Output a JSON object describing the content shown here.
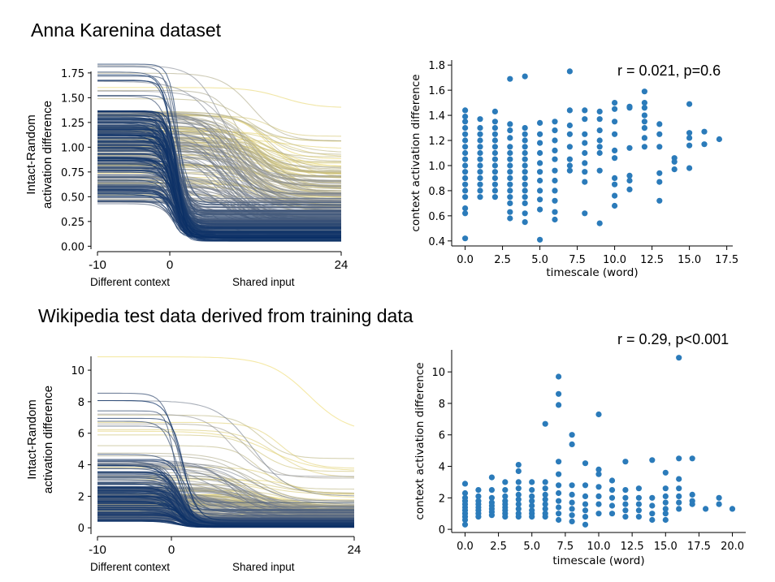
{
  "titles": {
    "anna": "Anna Karenina dataset",
    "wiki": "Wikipedia test data derived from training data"
  },
  "chart_data": [
    {
      "id": "anna-curves",
      "type": "line",
      "ylabel_lines": [
        "Intact-Random",
        "activation difference"
      ],
      "xticks": [
        "-10",
        "0",
        "24"
      ],
      "yticks": [
        "0.00",
        "0.25",
        "0.50",
        "0.75",
        "1.00",
        "1.25",
        "1.50",
        "1.75"
      ],
      "below_labels": [
        "Different context",
        "Shared input"
      ],
      "x_range": [
        -10,
        24
      ],
      "ylim": [
        -0.03,
        1.88
      ],
      "colors": {
        "short_timescale": "#0a2f66",
        "mid_timescale": "#8c8f96",
        "long_timescale": "#f0dc6a"
      },
      "series_count": 350,
      "grid": false
    },
    {
      "id": "anna-scatter",
      "type": "scatter",
      "annotation": "r = 0.021, p=0.6",
      "xlabel": "timescale (word)",
      "ylabel": "context activation difference",
      "xticks": [
        "0.0",
        "2.5",
        "5.0",
        "7.5",
        "10.0",
        "12.5",
        "15.0",
        "17.5"
      ],
      "yticks": [
        "0.4",
        "0.6",
        "0.8",
        "1.0",
        "1.2",
        "1.4",
        "1.6",
        "1.8"
      ],
      "xlim": [
        -0.9,
        17.9
      ],
      "ylim": [
        0.36,
        1.84
      ],
      "marker_color": "#2b7bba",
      "grid": false,
      "points": [
        [
          0,
          1.44
        ],
        [
          0,
          1.39
        ],
        [
          0,
          1.35
        ],
        [
          0,
          1.3
        ],
        [
          0,
          1.25
        ],
        [
          0,
          1.2
        ],
        [
          0,
          1.15
        ],
        [
          0,
          1.1
        ],
        [
          0,
          1.05
        ],
        [
          0,
          1.0
        ],
        [
          0,
          0.95
        ],
        [
          0,
          0.9
        ],
        [
          0,
          0.85
        ],
        [
          0,
          0.8
        ],
        [
          0,
          0.75
        ],
        [
          0,
          0.66
        ],
        [
          0,
          0.62
        ],
        [
          0,
          0.42
        ],
        [
          1,
          1.37
        ],
        [
          1,
          1.3
        ],
        [
          1,
          1.25
        ],
        [
          1,
          1.2
        ],
        [
          1,
          1.15
        ],
        [
          1,
          1.1
        ],
        [
          1,
          1.05
        ],
        [
          1,
          1.0
        ],
        [
          1,
          0.95
        ],
        [
          1,
          0.9
        ],
        [
          1,
          0.85
        ],
        [
          1,
          0.8
        ],
        [
          1,
          0.75
        ],
        [
          2,
          1.43
        ],
        [
          2,
          1.35
        ],
        [
          2,
          1.3
        ],
        [
          2,
          1.25
        ],
        [
          2,
          1.2
        ],
        [
          2,
          1.15
        ],
        [
          2,
          1.1
        ],
        [
          2,
          1.05
        ],
        [
          2,
          1.0
        ],
        [
          2,
          0.95
        ],
        [
          2,
          0.9
        ],
        [
          2,
          0.85
        ],
        [
          2,
          0.8
        ],
        [
          2,
          0.75
        ],
        [
          3,
          1.69
        ],
        [
          3,
          1.33
        ],
        [
          3,
          1.28
        ],
        [
          3,
          1.22
        ],
        [
          3,
          1.15
        ],
        [
          3,
          1.1
        ],
        [
          3,
          1.05
        ],
        [
          3,
          1.0
        ],
        [
          3,
          0.95
        ],
        [
          3,
          0.9
        ],
        [
          3,
          0.85
        ],
        [
          3,
          0.8
        ],
        [
          3,
          0.75
        ],
        [
          3,
          0.7
        ],
        [
          3,
          0.63
        ],
        [
          3,
          0.58
        ],
        [
          4,
          1.71
        ],
        [
          4,
          1.3
        ],
        [
          4,
          1.25
        ],
        [
          4,
          1.2
        ],
        [
          4,
          1.15
        ],
        [
          4,
          1.1
        ],
        [
          4,
          1.05
        ],
        [
          4,
          1.0
        ],
        [
          4,
          0.95
        ],
        [
          4,
          0.9
        ],
        [
          4,
          0.85
        ],
        [
          4,
          0.8
        ],
        [
          4,
          0.75
        ],
        [
          4,
          0.7
        ],
        [
          4,
          0.62
        ],
        [
          4,
          0.55
        ],
        [
          5,
          1.34
        ],
        [
          5,
          1.25
        ],
        [
          5,
          1.18
        ],
        [
          5,
          1.1
        ],
        [
          5,
          1.02
        ],
        [
          5,
          0.95
        ],
        [
          5,
          0.88
        ],
        [
          5,
          0.8
        ],
        [
          5,
          0.73
        ],
        [
          5,
          0.65
        ],
        [
          5,
          0.41
        ],
        [
          6,
          1.35
        ],
        [
          6,
          1.28
        ],
        [
          6,
          1.2
        ],
        [
          6,
          1.12
        ],
        [
          6,
          1.05
        ],
        [
          6,
          0.96
        ],
        [
          6,
          0.88
        ],
        [
          6,
          0.8
        ],
        [
          6,
          0.72
        ],
        [
          6,
          0.63
        ],
        [
          6,
          0.57
        ],
        [
          7,
          1.75
        ],
        [
          7,
          1.44
        ],
        [
          7,
          1.32
        ],
        [
          7,
          1.25
        ],
        [
          7,
          1.15
        ],
        [
          7,
          1.05
        ],
        [
          7,
          1.0
        ],
        [
          7,
          0.96
        ],
        [
          8,
          1.44
        ],
        [
          8,
          1.37
        ],
        [
          8,
          1.25
        ],
        [
          8,
          1.18
        ],
        [
          8,
          1.1
        ],
        [
          8,
          1.02
        ],
        [
          8,
          0.95
        ],
        [
          8,
          0.87
        ],
        [
          8,
          0.62
        ],
        [
          9,
          1.43
        ],
        [
          9,
          1.37
        ],
        [
          9,
          1.28
        ],
        [
          9,
          1.2
        ],
        [
          9,
          1.15
        ],
        [
          9,
          1.1
        ],
        [
          9,
          0.96
        ],
        [
          9,
          0.54
        ],
        [
          10,
          1.5
        ],
        [
          10,
          1.45
        ],
        [
          10,
          1.35
        ],
        [
          10,
          1.25
        ],
        [
          10,
          1.12
        ],
        [
          10,
          1.06
        ],
        [
          10,
          0.9
        ],
        [
          10,
          0.85
        ],
        [
          10,
          0.76
        ],
        [
          10,
          0.68
        ],
        [
          11,
          1.47
        ],
        [
          11,
          1.46
        ],
        [
          11,
          1.14
        ],
        [
          11,
          0.92
        ],
        [
          11,
          0.88
        ],
        [
          11,
          0.81
        ],
        [
          12,
          1.59
        ],
        [
          12,
          1.5
        ],
        [
          12,
          1.46
        ],
        [
          12,
          1.4
        ],
        [
          12,
          1.35
        ],
        [
          12,
          1.3
        ],
        [
          12,
          1.22
        ],
        [
          12,
          1.15
        ],
        [
          13,
          1.33
        ],
        [
          13,
          1.25
        ],
        [
          13,
          1.15
        ],
        [
          13,
          0.94
        ],
        [
          13,
          0.87
        ],
        [
          13,
          0.72
        ],
        [
          14,
          1.06
        ],
        [
          14,
          1.03
        ],
        [
          14,
          0.97
        ],
        [
          15,
          1.49
        ],
        [
          15,
          1.26
        ],
        [
          15,
          1.22
        ],
        [
          15,
          1.16
        ],
        [
          15,
          0.98
        ],
        [
          16,
          1.27
        ],
        [
          16,
          1.17
        ],
        [
          17,
          1.21
        ]
      ]
    },
    {
      "id": "wiki-curves",
      "type": "line",
      "ylabel_lines": [
        "Intact-Random",
        "activation difference"
      ],
      "xticks": [
        "-10",
        "0",
        "24"
      ],
      "yticks": [
        "0",
        "2",
        "4",
        "6",
        "8",
        "10"
      ],
      "below_labels": [
        "Different context",
        "Shared input"
      ],
      "x_range": [
        -10,
        24
      ],
      "ylim": [
        -0.4,
        11.6
      ],
      "colors": {
        "short_timescale": "#0a2f66",
        "mid_timescale": "#8c8f96",
        "long_timescale": "#f0dc6a"
      },
      "series_count": 300,
      "grid": false
    },
    {
      "id": "wiki-scatter",
      "type": "scatter",
      "annotation": "r = 0.29, p<0.001",
      "xlabel": "timescale (word)",
      "ylabel": "context activation difference",
      "xticks": [
        "0.0",
        "2.5",
        "5.0",
        "7.5",
        "10.0",
        "12.5",
        "15.0",
        "17.5",
        "20.0"
      ],
      "yticks": [
        "0",
        "2",
        "4",
        "6",
        "8",
        "10"
      ],
      "xlim": [
        -1.0,
        21.0
      ],
      "ylim": [
        -0.2,
        11.4
      ],
      "marker_color": "#2b7bba",
      "grid": false,
      "points": [
        [
          0,
          2.9
        ],
        [
          0,
          2.3
        ],
        [
          0,
          2.0
        ],
        [
          0,
          1.8
        ],
        [
          0,
          1.6
        ],
        [
          0,
          1.4
        ],
        [
          0,
          1.2
        ],
        [
          0,
          1.0
        ],
        [
          0,
          0.8
        ],
        [
          0,
          0.6
        ],
        [
          0,
          0.3
        ],
        [
          1,
          2.5
        ],
        [
          1,
          2.1
        ],
        [
          1,
          1.8
        ],
        [
          1,
          1.6
        ],
        [
          1,
          1.4
        ],
        [
          1,
          1.2
        ],
        [
          1,
          1.0
        ],
        [
          1,
          0.8
        ],
        [
          2,
          3.3
        ],
        [
          2,
          2.5
        ],
        [
          2,
          2.0
        ],
        [
          2,
          1.7
        ],
        [
          2,
          1.5
        ],
        [
          2,
          1.3
        ],
        [
          2,
          1.1
        ],
        [
          2,
          0.9
        ],
        [
          3,
          3.0
        ],
        [
          3,
          2.5
        ],
        [
          3,
          2.1
        ],
        [
          3,
          1.8
        ],
        [
          3,
          1.6
        ],
        [
          3,
          1.4
        ],
        [
          3,
          1.2
        ],
        [
          3,
          1.0
        ],
        [
          3,
          0.8
        ],
        [
          4,
          4.1
        ],
        [
          4,
          3.7
        ],
        [
          4,
          3.0
        ],
        [
          4,
          2.6
        ],
        [
          4,
          2.2
        ],
        [
          4,
          1.9
        ],
        [
          4,
          1.6
        ],
        [
          4,
          1.3
        ],
        [
          4,
          1.0
        ],
        [
          4,
          0.8
        ],
        [
          5,
          3.0
        ],
        [
          5,
          2.5
        ],
        [
          5,
          2.1
        ],
        [
          5,
          1.8
        ],
        [
          5,
          1.5
        ],
        [
          5,
          1.2
        ],
        [
          5,
          1.0
        ],
        [
          5,
          0.8
        ],
        [
          6,
          6.7
        ],
        [
          6,
          3.0
        ],
        [
          6,
          2.6
        ],
        [
          6,
          2.2
        ],
        [
          6,
          1.9
        ],
        [
          6,
          1.6
        ],
        [
          6,
          1.3
        ],
        [
          6,
          1.0
        ],
        [
          6,
          0.8
        ],
        [
          7,
          9.7
        ],
        [
          7,
          8.6
        ],
        [
          7,
          7.9
        ],
        [
          7,
          4.3
        ],
        [
          7,
          3.5
        ],
        [
          7,
          2.8
        ],
        [
          7,
          2.3
        ],
        [
          7,
          1.8
        ],
        [
          7,
          1.4
        ],
        [
          7,
          1.0
        ],
        [
          7,
          0.6
        ],
        [
          8,
          6.0
        ],
        [
          8,
          5.4
        ],
        [
          8,
          2.8
        ],
        [
          8,
          2.2
        ],
        [
          8,
          1.7
        ],
        [
          8,
          1.3
        ],
        [
          8,
          0.9
        ],
        [
          8,
          0.5
        ],
        [
          9,
          4.2
        ],
        [
          9,
          2.8
        ],
        [
          9,
          2.1
        ],
        [
          9,
          1.6
        ],
        [
          9,
          1.2
        ],
        [
          9,
          0.8
        ],
        [
          9,
          0.3
        ],
        [
          10,
          7.3
        ],
        [
          10,
          3.8
        ],
        [
          10,
          3.5
        ],
        [
          10,
          2.7
        ],
        [
          10,
          2.1
        ],
        [
          10,
          1.6
        ],
        [
          10,
          1.0
        ],
        [
          11,
          3.1
        ],
        [
          11,
          2.5
        ],
        [
          11,
          2.0
        ],
        [
          11,
          1.5
        ],
        [
          11,
          1.0
        ],
        [
          12,
          4.3
        ],
        [
          12,
          2.5
        ],
        [
          12,
          2.0
        ],
        [
          12,
          1.6
        ],
        [
          12,
          1.2
        ],
        [
          12,
          0.8
        ],
        [
          13,
          2.6
        ],
        [
          13,
          2.0
        ],
        [
          13,
          1.6
        ],
        [
          13,
          1.2
        ],
        [
          13,
          0.8
        ],
        [
          14,
          4.4
        ],
        [
          14,
          2.0
        ],
        [
          14,
          1.5
        ],
        [
          14,
          1.0
        ],
        [
          14,
          0.6
        ],
        [
          15,
          3.6
        ],
        [
          15,
          2.6
        ],
        [
          15,
          2.1
        ],
        [
          15,
          1.7
        ],
        [
          15,
          1.3
        ],
        [
          15,
          1.0
        ],
        [
          15,
          0.6
        ],
        [
          16,
          10.9
        ],
        [
          16,
          4.5
        ],
        [
          16,
          3.2
        ],
        [
          16,
          2.6
        ],
        [
          16,
          2.1
        ],
        [
          16,
          1.7
        ],
        [
          16,
          1.3
        ],
        [
          17,
          4.5
        ],
        [
          17,
          2.2
        ],
        [
          17,
          1.8
        ],
        [
          17,
          1.6
        ],
        [
          18,
          1.3
        ],
        [
          19,
          2.0
        ],
        [
          19,
          1.6
        ],
        [
          20,
          1.3
        ]
      ]
    }
  ]
}
